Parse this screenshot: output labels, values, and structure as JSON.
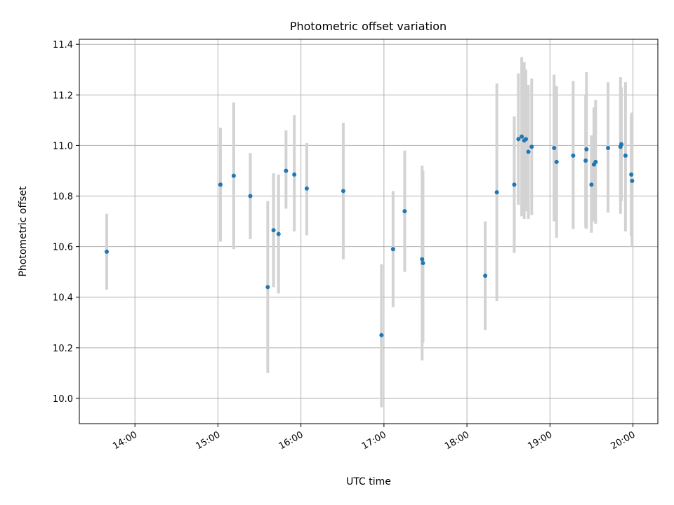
{
  "chart_data": {
    "type": "scatter",
    "title": "Photometric offset variation",
    "xlabel": "UTC time",
    "ylabel": "Photometric offset",
    "x_unit": "hours UTC",
    "xlim": [
      13.33,
      20.3
    ],
    "ylim": [
      9.9,
      11.42
    ],
    "grid": true,
    "x_ticks": [
      {
        "value": 14,
        "label": "14:00"
      },
      {
        "value": 15,
        "label": "15:00"
      },
      {
        "value": 16,
        "label": "16:00"
      },
      {
        "value": 17,
        "label": "17:00"
      },
      {
        "value": 18,
        "label": "18:00"
      },
      {
        "value": 19,
        "label": "19:00"
      },
      {
        "value": 20,
        "label": "20:00"
      }
    ],
    "y_ticks": [
      {
        "value": 10.0,
        "label": "10.0"
      },
      {
        "value": 10.2,
        "label": "10.2"
      },
      {
        "value": 10.4,
        "label": "10.4"
      },
      {
        "value": 10.6,
        "label": "10.6"
      },
      {
        "value": 10.8,
        "label": "10.8"
      },
      {
        "value": 11.0,
        "label": "11.0"
      },
      {
        "value": 11.2,
        "label": "11.2"
      },
      {
        "value": 11.4,
        "label": "11.4"
      }
    ],
    "point_color": "#1f77b4",
    "errorbar_color": "#d3d3d3",
    "points": [
      {
        "x": 13.66,
        "y": 10.58,
        "ylo": 10.43,
        "yhi": 10.73
      },
      {
        "x": 15.03,
        "y": 10.845,
        "ylo": 10.62,
        "yhi": 11.07
      },
      {
        "x": 15.19,
        "y": 10.88,
        "ylo": 10.59,
        "yhi": 11.17
      },
      {
        "x": 15.39,
        "y": 10.8,
        "ylo": 10.63,
        "yhi": 10.97
      },
      {
        "x": 15.6,
        "y": 10.44,
        "ylo": 10.1,
        "yhi": 10.78
      },
      {
        "x": 15.67,
        "y": 10.665,
        "ylo": 10.44,
        "yhi": 10.89
      },
      {
        "x": 15.73,
        "y": 10.65,
        "ylo": 10.415,
        "yhi": 10.885
      },
      {
        "x": 15.82,
        "y": 10.9,
        "ylo": 10.75,
        "yhi": 11.06
      },
      {
        "x": 15.92,
        "y": 10.885,
        "ylo": 10.66,
        "yhi": 11.12
      },
      {
        "x": 16.07,
        "y": 10.83,
        "ylo": 10.645,
        "yhi": 11.01
      },
      {
        "x": 16.51,
        "y": 10.82,
        "ylo": 10.55,
        "yhi": 11.09
      },
      {
        "x": 16.97,
        "y": 10.25,
        "ylo": 9.965,
        "yhi": 10.53
      },
      {
        "x": 17.11,
        "y": 10.59,
        "ylo": 10.36,
        "yhi": 10.82
      },
      {
        "x": 17.25,
        "y": 10.74,
        "ylo": 10.5,
        "yhi": 10.98
      },
      {
        "x": 17.46,
        "y": 10.55,
        "ylo": 10.15,
        "yhi": 10.92
      },
      {
        "x": 17.47,
        "y": 10.535,
        "ylo": 10.22,
        "yhi": 10.9
      },
      {
        "x": 18.22,
        "y": 10.485,
        "ylo": 10.27,
        "yhi": 10.7
      },
      {
        "x": 18.36,
        "y": 10.815,
        "ylo": 10.385,
        "yhi": 11.245
      },
      {
        "x": 18.57,
        "y": 10.845,
        "ylo": 10.575,
        "yhi": 11.115
      },
      {
        "x": 18.62,
        "y": 11.025,
        "ylo": 10.765,
        "yhi": 11.285
      },
      {
        "x": 18.66,
        "y": 11.035,
        "ylo": 10.72,
        "yhi": 11.35
      },
      {
        "x": 18.69,
        "y": 11.02,
        "ylo": 10.71,
        "yhi": 11.33
      },
      {
        "x": 18.71,
        "y": 11.025,
        "ylo": 10.74,
        "yhi": 11.3
      },
      {
        "x": 18.74,
        "y": 10.975,
        "ylo": 10.71,
        "yhi": 11.24
      },
      {
        "x": 18.78,
        "y": 10.995,
        "ylo": 10.725,
        "yhi": 11.265
      },
      {
        "x": 19.05,
        "y": 10.99,
        "ylo": 10.7,
        "yhi": 11.28
      },
      {
        "x": 19.08,
        "y": 10.935,
        "ylo": 10.635,
        "yhi": 11.235
      },
      {
        "x": 19.28,
        "y": 10.96,
        "ylo": 10.67,
        "yhi": 11.255
      },
      {
        "x": 19.43,
        "y": 10.94,
        "ylo": 10.675,
        "yhi": 11.2
      },
      {
        "x": 19.44,
        "y": 10.985,
        "ylo": 10.67,
        "yhi": 11.29
      },
      {
        "x": 19.5,
        "y": 10.845,
        "ylo": 10.655,
        "yhi": 11.04
      },
      {
        "x": 19.53,
        "y": 10.925,
        "ylo": 10.7,
        "yhi": 11.15
      },
      {
        "x": 19.55,
        "y": 10.935,
        "ylo": 10.69,
        "yhi": 11.18
      },
      {
        "x": 19.7,
        "y": 10.99,
        "ylo": 10.735,
        "yhi": 11.25
      },
      {
        "x": 19.85,
        "y": 10.995,
        "ylo": 10.73,
        "yhi": 11.27
      },
      {
        "x": 19.86,
        "y": 11.005,
        "ylo": 10.78,
        "yhi": 11.23
      },
      {
        "x": 19.91,
        "y": 10.96,
        "ylo": 10.66,
        "yhi": 11.25
      },
      {
        "x": 19.98,
        "y": 10.885,
        "ylo": 10.64,
        "yhi": 11.125
      },
      {
        "x": 19.99,
        "y": 10.86,
        "ylo": 10.6,
        "yhi": 11.13
      }
    ]
  }
}
